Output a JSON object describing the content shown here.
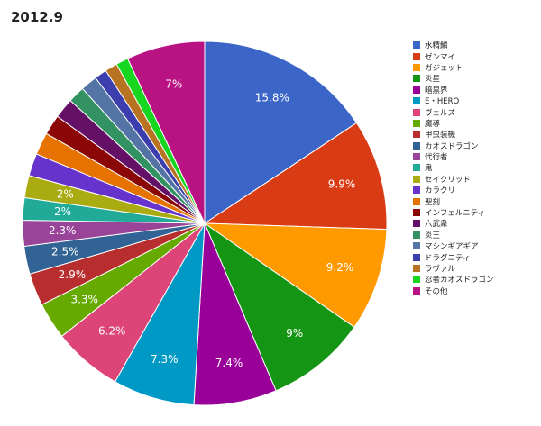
{
  "chart_data": {
    "type": "pie",
    "title": "2012.9",
    "legend_position": "right",
    "start_angle_deg": -90,
    "direction": "clockwise",
    "slices": [
      {
        "name": "水精鱗",
        "value": 15.8,
        "color": "#3b66c8",
        "label": "15.8%"
      },
      {
        "name": "ゼンマイ",
        "value": 9.9,
        "color": "#d93c15",
        "label": "9.9%"
      },
      {
        "name": "ガジェット",
        "value": 9.2,
        "color": "#ff9900",
        "label": "9.2%"
      },
      {
        "name": "炎星",
        "value": 9.0,
        "color": "#149614",
        "label": "9%"
      },
      {
        "name": "暗黒界",
        "value": 7.4,
        "color": "#990099",
        "label": "7.4%"
      },
      {
        "name": "E・HERO",
        "value": 7.3,
        "color": "#0099c6",
        "label": "7.3%"
      },
      {
        "name": "ヴェルズ",
        "value": 6.2,
        "color": "#dd4477",
        "label": "6.2%"
      },
      {
        "name": "魔導",
        "value": 3.3,
        "color": "#66aa00",
        "label": "3.3%"
      },
      {
        "name": "甲虫装機",
        "value": 2.9,
        "color": "#b82e2e",
        "label": "2.9%"
      },
      {
        "name": "カオスドラゴン",
        "value": 2.5,
        "color": "#316395",
        "label": "2.5%"
      },
      {
        "name": "代行者",
        "value": 2.3,
        "color": "#994499",
        "label": "2.3%"
      },
      {
        "name": "鬼",
        "value": 2.0,
        "color": "#22aa99",
        "label": "2%"
      },
      {
        "name": "セイクリッド",
        "value": 2.0,
        "color": "#aaaa11",
        "label": "2%"
      },
      {
        "name": "カラクリ",
        "value": 2.0,
        "color": "#6633cc",
        "label": ""
      },
      {
        "name": "聖刻",
        "value": 2.0,
        "color": "#e67300",
        "label": ""
      },
      {
        "name": "インフェルニティ",
        "value": 1.8,
        "color": "#8b0707",
        "label": ""
      },
      {
        "name": "六武衆",
        "value": 1.8,
        "color": "#651067",
        "label": ""
      },
      {
        "name": "炎王",
        "value": 1.5,
        "color": "#329262",
        "label": ""
      },
      {
        "name": "マシンギアギア",
        "value": 1.5,
        "color": "#5574a6",
        "label": ""
      },
      {
        "name": "ドラグニティ",
        "value": 1.1,
        "color": "#3b3eac",
        "label": ""
      },
      {
        "name": "ラヴァル",
        "value": 1.1,
        "color": "#b77322",
        "label": ""
      },
      {
        "name": "忍者カオスドラゴン",
        "value": 1.1,
        "color": "#16d620",
        "label": ""
      },
      {
        "name": "その他",
        "value": 7.0,
        "color": "#b91383",
        "label": "7%"
      }
    ]
  }
}
